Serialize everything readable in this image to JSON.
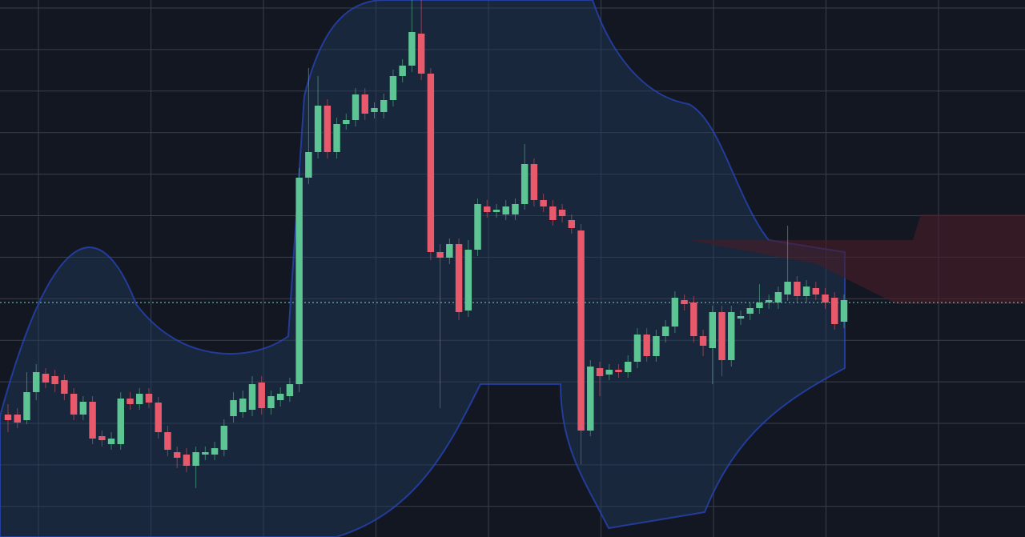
{
  "chart_data": {
    "type": "candlestick",
    "open": [
      153,
      153,
      146,
      181,
      204,
      201,
      196,
      179,
      153,
      169,
      126,
      116,
      116,
      173,
      166,
      179,
      168,
      131,
      106,
      103,
      89,
      103,
      103,
      109,
      151,
      156,
      159,
      193,
      161,
      171,
      176,
      191,
      449,
      481,
      539,
      481,
      516,
      521,
      553,
      531,
      531,
      546,
      576,
      589,
      629,
      579,
      356,
      349,
      366,
      283,
      359,
      413,
      406,
      403,
      403,
      416,
      466,
      421,
      413,
      409,
      396,
      383,
      133,
      211,
      203,
      209,
      206,
      219,
      253,
      226,
      251,
      263,
      296,
      293,
      251,
      236,
      281,
      221,
      273,
      279,
      286,
      293,
      293,
      303,
      319,
      301,
      311,
      303,
      299,
      269
    ],
    "high": [
      166,
      161,
      206,
      216,
      211,
      209,
      203,
      186,
      176,
      176,
      133,
      131,
      181,
      181,
      186,
      186,
      175,
      139,
      113,
      111,
      113,
      113,
      119,
      147,
      181,
      183,
      201,
      201,
      183,
      187,
      199,
      461,
      586,
      576,
      547,
      524,
      529,
      561,
      561,
      543,
      554,
      584,
      597,
      671,
      671,
      586,
      366,
      373,
      373,
      371,
      423,
      421,
      416,
      421,
      423,
      491,
      473,
      429,
      421,
      416,
      403,
      391,
      221,
      219,
      216,
      216,
      227,
      261,
      261,
      259,
      271,
      307,
      303,
      301,
      259,
      289,
      289,
      289,
      283,
      293,
      316,
      303,
      313,
      389,
      326,
      321,
      319,
      311,
      306,
      303
    ],
    "low": [
      131,
      136,
      141,
      171,
      186,
      181,
      171,
      146,
      146,
      116,
      113,
      109,
      109,
      159,
      159,
      161,
      123,
      101,
      86,
      81,
      61,
      96,
      96,
      101,
      143,
      149,
      151,
      153,
      153,
      163,
      169,
      181,
      441,
      473,
      473,
      473,
      509,
      513,
      521,
      523,
      523,
      538,
      568,
      581,
      571,
      346,
      161,
      341,
      271,
      275,
      351,
      399,
      399,
      396,
      396,
      409,
      413,
      406,
      389,
      393,
      379,
      91,
      126,
      176,
      196,
      199,
      199,
      211,
      219,
      219,
      243,
      255,
      283,
      243,
      226,
      191,
      201,
      213,
      265,
      271,
      279,
      285,
      285,
      295,
      293,
      293,
      296,
      285,
      259,
      261
    ],
    "close": [
      146,
      143,
      181,
      206,
      193,
      191,
      179,
      153,
      169,
      123,
      121,
      123,
      173,
      166,
      179,
      168,
      131,
      109,
      99,
      89,
      106,
      106,
      111,
      139,
      171,
      173,
      191,
      161,
      176,
      179,
      191,
      449,
      481,
      539,
      481,
      516,
      521,
      553,
      529,
      536,
      546,
      576,
      589,
      631,
      579,
      356,
      349,
      366,
      281,
      359,
      416,
      406,
      409,
      413,
      416,
      466,
      421,
      413,
      396,
      401,
      386,
      133,
      213,
      201,
      209,
      206,
      219,
      253,
      226,
      251,
      263,
      299,
      291,
      251,
      239,
      281,
      221,
      281,
      276,
      286,
      293,
      296,
      306,
      319,
      301,
      313,
      303,
      293,
      266,
      296
    ],
    "up_color": "#5cc593",
    "down_color": "#e9596c",
    "ylim": [
      0,
      671
    ],
    "grid": true
  }
}
